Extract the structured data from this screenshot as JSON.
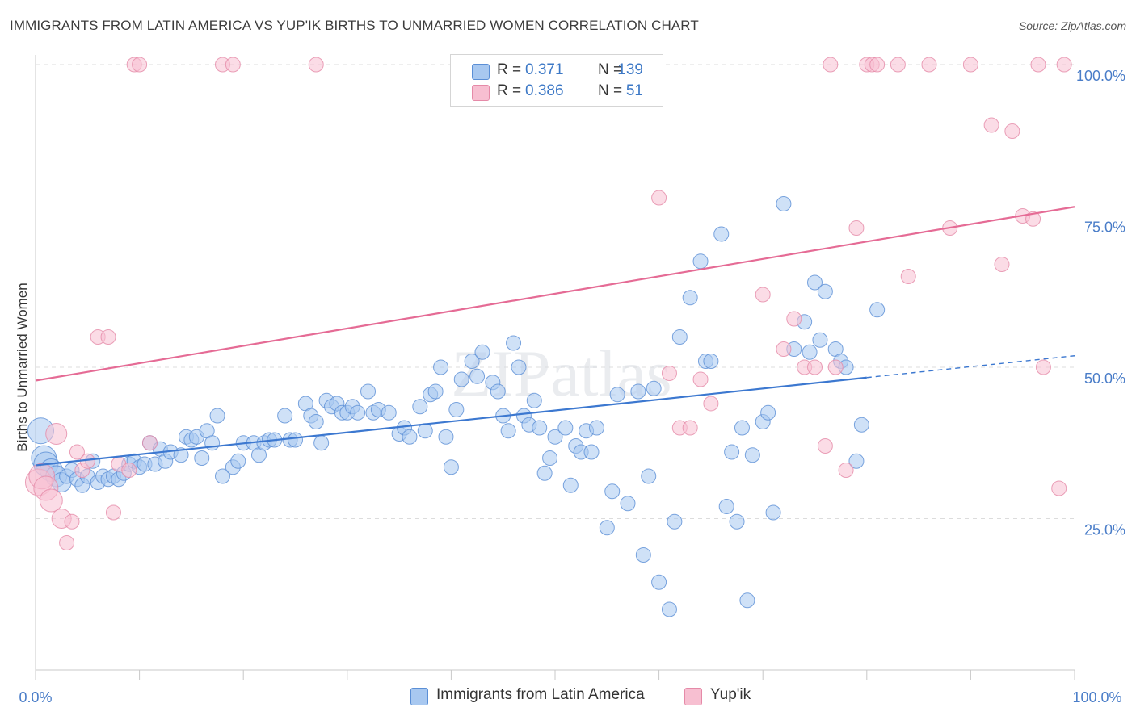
{
  "header": {
    "title": "IMMIGRANTS FROM LATIN AMERICA VS YUP'IK BIRTHS TO UNMARRIED WOMEN CORRELATION CHART",
    "source": "Source: ZipAtlas.com"
  },
  "watermark": "ZIPatlas",
  "legend": {
    "rows": [
      {
        "r_label": "R =",
        "r_value": "0.371",
        "n_label": "N =",
        "n_value": "139",
        "color": "#a8c8f0"
      },
      {
        "r_label": "R =",
        "r_value": "0.386",
        "n_label": "N =",
        "n_value": "51",
        "color": "#f5b8cb"
      }
    ]
  },
  "bottom_legend": {
    "series_a": "Immigrants from Latin America",
    "series_b": "Yup'ik"
  },
  "chart_data": {
    "type": "scatter",
    "title": "IMMIGRANTS FROM LATIN AMERICA VS YUP'IK BIRTHS TO UNMARRIED WOMEN CORRELATION CHART",
    "xlabel": "",
    "ylabel": "Births to Unmarried Women",
    "xlim": [
      0,
      100
    ],
    "ylim": [
      0,
      100
    ],
    "x_tick_labels": {
      "min": "0.0%",
      "max": "100.0%"
    },
    "y_ticks": [
      {
        "value": 25,
        "label": "25.0%"
      },
      {
        "value": 50,
        "label": "50.0%"
      },
      {
        "value": 75,
        "label": "75.0%"
      },
      {
        "value": 100,
        "label": "100.0%"
      }
    ],
    "grid": true,
    "colors": {
      "blue_fill": "#a8c8f0",
      "blue_stroke": "#5b8fd6",
      "blue_line": "#3c78d0",
      "pink_fill": "#f7bfd1",
      "pink_stroke": "#e58aa8",
      "pink_line": "#e56b95",
      "axis_tick_text": "#4a7dc8"
    },
    "series": [
      {
        "name": "Immigrants from Latin America",
        "R": 0.371,
        "N": 139,
        "trend": {
          "x0": 0,
          "y0": 33.8,
          "x1": 80,
          "y1": 48.3,
          "dashed_to_x": 100,
          "dashed_to_y": 51.9
        },
        "points": [
          [
            0.5,
            39.5
          ],
          [
            0.8,
            35
          ],
          [
            1.0,
            34
          ],
          [
            1.5,
            33
          ],
          [
            2,
            32
          ],
          [
            2.5,
            31
          ],
          [
            3,
            32
          ],
          [
            3.5,
            33
          ],
          [
            4,
            31.5
          ],
          [
            4.5,
            30.5
          ],
          [
            5,
            32
          ],
          [
            5.5,
            34.5
          ],
          [
            6,
            31
          ],
          [
            6.5,
            32
          ],
          [
            7,
            31.5
          ],
          [
            7.5,
            32
          ],
          [
            8,
            31.5
          ],
          [
            8.5,
            32.5
          ],
          [
            9,
            34
          ],
          [
            9.5,
            34.5
          ],
          [
            10,
            33.5
          ],
          [
            10.5,
            34
          ],
          [
            11,
            37.5
          ],
          [
            11.5,
            34
          ],
          [
            12,
            36.5
          ],
          [
            12.5,
            34.5
          ],
          [
            13,
            36
          ],
          [
            14,
            35.5
          ],
          [
            14.5,
            38.5
          ],
          [
            15,
            38
          ],
          [
            15.5,
            38.5
          ],
          [
            16,
            35
          ],
          [
            16.5,
            39.5
          ],
          [
            17,
            37.5
          ],
          [
            17.5,
            42
          ],
          [
            18,
            32
          ],
          [
            19,
            33.5
          ],
          [
            19.5,
            34.5
          ],
          [
            20,
            37.5
          ],
          [
            21,
            37.5
          ],
          [
            21.5,
            35.5
          ],
          [
            22,
            37.5
          ],
          [
            22.5,
            38
          ],
          [
            23,
            38
          ],
          [
            24,
            42
          ],
          [
            24.5,
            38
          ],
          [
            25,
            38
          ],
          [
            26,
            44
          ],
          [
            26.5,
            42
          ],
          [
            27,
            41
          ],
          [
            27.5,
            37.5
          ],
          [
            28,
            44.5
          ],
          [
            28.5,
            43.5
          ],
          [
            29,
            44
          ],
          [
            29.5,
            42.5
          ],
          [
            30,
            42.5
          ],
          [
            30.5,
            43.5
          ],
          [
            31,
            42.5
          ],
          [
            32,
            46
          ],
          [
            32.5,
            42.5
          ],
          [
            33,
            43
          ],
          [
            34,
            42.5
          ],
          [
            35,
            39
          ],
          [
            35.5,
            40
          ],
          [
            36,
            38.5
          ],
          [
            37,
            43.5
          ],
          [
            37.5,
            39.5
          ],
          [
            38,
            45.5
          ],
          [
            38.5,
            46
          ],
          [
            39,
            50
          ],
          [
            39.5,
            38.5
          ],
          [
            40,
            33.5
          ],
          [
            40.5,
            43
          ],
          [
            41,
            48
          ],
          [
            42,
            51
          ],
          [
            42.5,
            48.5
          ],
          [
            43,
            52.5
          ],
          [
            44,
            47.5
          ],
          [
            44.5,
            46
          ],
          [
            45,
            42
          ],
          [
            45.5,
            39.5
          ],
          [
            46,
            54
          ],
          [
            46.5,
            50
          ],
          [
            47,
            42
          ],
          [
            47.5,
            40.5
          ],
          [
            48,
            44.5
          ],
          [
            48.5,
            40
          ],
          [
            49,
            32.5
          ],
          [
            49.5,
            35
          ],
          [
            50,
            38.5
          ],
          [
            51,
            40
          ],
          [
            51.5,
            30.5
          ],
          [
            52,
            37
          ],
          [
            52.5,
            36
          ],
          [
            53,
            39.5
          ],
          [
            53.5,
            36
          ],
          [
            54,
            40
          ],
          [
            55,
            23.5
          ],
          [
            55.5,
            29.5
          ],
          [
            56,
            45.5
          ],
          [
            57,
            27.5
          ],
          [
            58,
            46
          ],
          [
            58.5,
            19
          ],
          [
            59,
            32
          ],
          [
            59.5,
            46.5
          ],
          [
            60,
            14.5
          ],
          [
            61,
            10
          ],
          [
            61.5,
            24.5
          ],
          [
            62,
            55
          ],
          [
            63,
            61.5
          ],
          [
            64,
            67.5
          ],
          [
            64.5,
            51
          ],
          [
            65,
            51
          ],
          [
            66,
            72
          ],
          [
            66.5,
            27
          ],
          [
            67,
            36
          ],
          [
            67.5,
            24.5
          ],
          [
            68,
            40
          ],
          [
            68.5,
            11.5
          ],
          [
            69,
            35.5
          ],
          [
            70,
            41
          ],
          [
            70.5,
            42.5
          ],
          [
            71,
            26
          ],
          [
            72,
            77
          ],
          [
            73,
            53
          ],
          [
            74,
            57.5
          ],
          [
            74.5,
            52.5
          ],
          [
            75,
            64
          ],
          [
            75.5,
            54.5
          ],
          [
            76,
            62.5
          ],
          [
            77,
            53
          ],
          [
            77.5,
            51
          ],
          [
            78,
            50
          ],
          [
            79,
            34.5
          ],
          [
            79.5,
            40.5
          ],
          [
            81,
            59.5
          ]
        ]
      },
      {
        "name": "Yup'ik",
        "R": 0.386,
        "N": 51,
        "trend": {
          "x0": 0,
          "y0": 47.8,
          "x1": 100,
          "y1": 76.5
        },
        "points": [
          [
            0.3,
            31
          ],
          [
            0.6,
            32
          ],
          [
            1,
            30
          ],
          [
            1.5,
            28
          ],
          [
            2,
            39
          ],
          [
            2.5,
            25
          ],
          [
            3,
            21
          ],
          [
            3.5,
            24.5
          ],
          [
            4,
            36
          ],
          [
            4.5,
            33
          ],
          [
            5,
            34.5
          ],
          [
            6,
            55
          ],
          [
            7,
            55
          ],
          [
            7.5,
            26
          ],
          [
            8,
            34
          ],
          [
            9,
            33
          ],
          [
            9.5,
            100
          ],
          [
            10,
            100
          ],
          [
            11,
            37.5
          ],
          [
            18,
            100
          ],
          [
            19,
            100
          ],
          [
            27,
            100
          ],
          [
            60,
            78
          ],
          [
            61,
            49
          ],
          [
            62,
            40
          ],
          [
            63,
            40
          ],
          [
            64,
            48
          ],
          [
            65,
            44
          ],
          [
            70,
            62
          ],
          [
            72,
            53
          ],
          [
            73,
            58
          ],
          [
            74,
            50
          ],
          [
            75,
            50
          ],
          [
            76,
            37
          ],
          [
            76.5,
            100
          ],
          [
            77,
            50
          ],
          [
            78,
            33
          ],
          [
            79,
            73
          ],
          [
            80,
            100
          ],
          [
            80.5,
            100
          ],
          [
            81,
            100
          ],
          [
            83,
            100
          ],
          [
            84,
            65
          ],
          [
            86,
            100
          ],
          [
            88,
            73
          ],
          [
            90,
            100
          ],
          [
            92,
            90
          ],
          [
            93,
            67
          ],
          [
            94,
            89
          ],
          [
            95,
            75
          ],
          [
            96,
            74.5
          ],
          [
            96.5,
            100
          ],
          [
            97,
            50
          ],
          [
            98.5,
            30
          ],
          [
            99,
            100
          ]
        ]
      }
    ]
  }
}
